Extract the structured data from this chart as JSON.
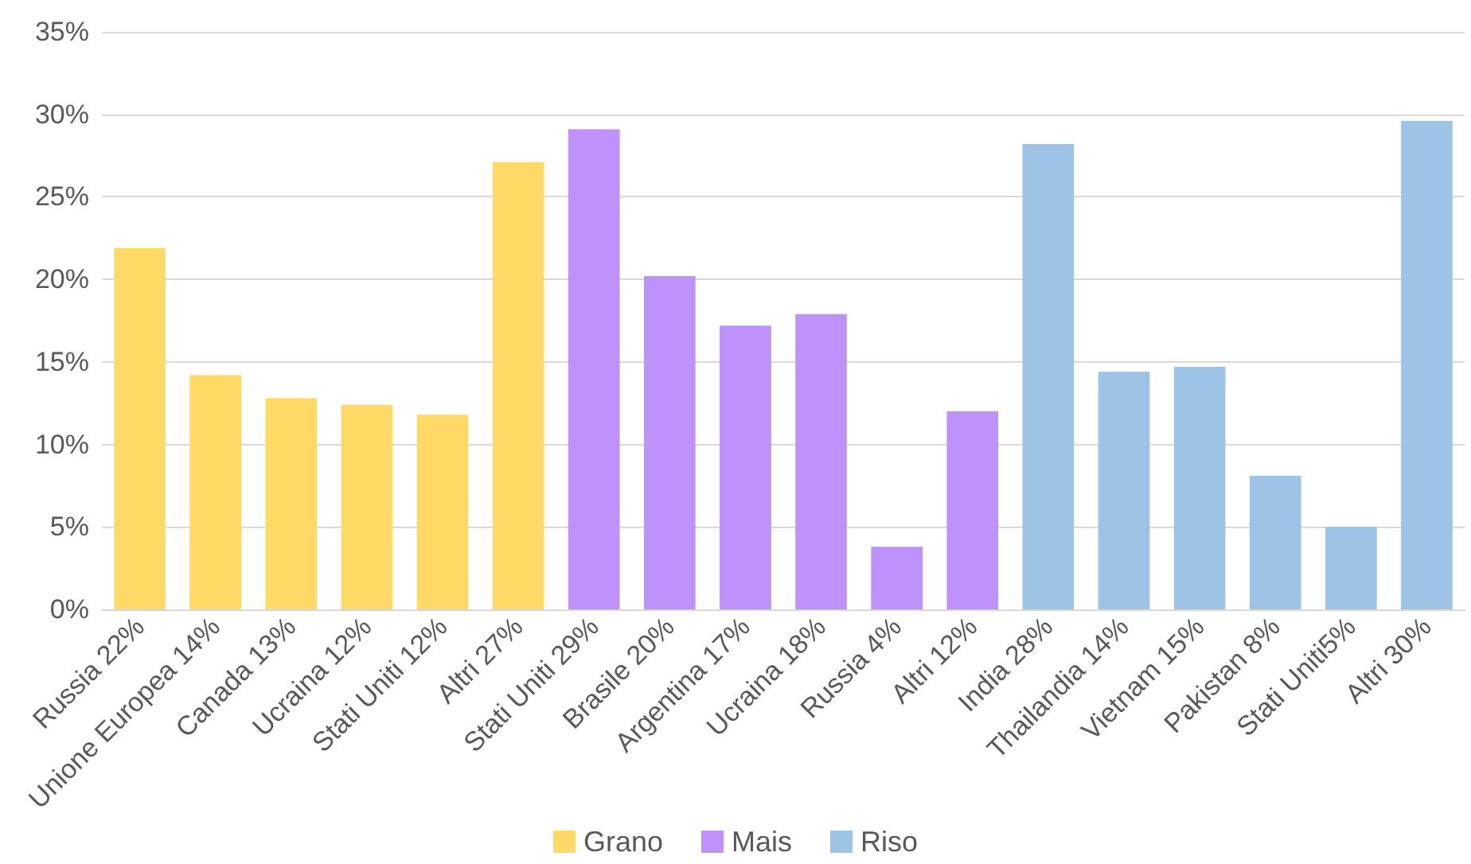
{
  "chart_data": {
    "type": "bar",
    "categories": [
      "Russia 22%",
      "Unione Europea 14%",
      "Canada 13%",
      "Ucraina 12%",
      "Stati Uniti 12%",
      "Altri 27%",
      "Stati Uniti 29%",
      "Brasile 20%",
      "Argentina 17%",
      "Ucraina 18%",
      "Russia 4%",
      "Altri 12%",
      "India 28%",
      "Thailandia 14%",
      "Vietnam 15%",
      "Pakistan 8%",
      "Stati Uniti5%",
      "Altri 30%"
    ],
    "series": [
      {
        "name": "Grano",
        "color": "#ffd966",
        "values": [
          21.9,
          14.2,
          12.8,
          12.4,
          11.8,
          27.1,
          null,
          null,
          null,
          null,
          null,
          null,
          null,
          null,
          null,
          null,
          null,
          null
        ]
      },
      {
        "name": "Mais",
        "color": "#bf91fb",
        "values": [
          null,
          null,
          null,
          null,
          null,
          null,
          29.1,
          20.2,
          17.2,
          17.9,
          3.8,
          12.0,
          null,
          null,
          null,
          null,
          null,
          null
        ]
      },
      {
        "name": "Riso",
        "color": "#9dc3e6",
        "values": [
          null,
          null,
          null,
          null,
          null,
          null,
          null,
          null,
          null,
          null,
          null,
          null,
          28.2,
          14.4,
          14.7,
          8.1,
          5.0,
          29.6
        ]
      }
    ],
    "ylim": [
      0,
      35
    ],
    "yticks": [
      {
        "value": 0,
        "label": "0%"
      },
      {
        "value": 5,
        "label": "5%"
      },
      {
        "value": 10,
        "label": "10%"
      },
      {
        "value": 15,
        "label": "15%"
      },
      {
        "value": 20,
        "label": "20%"
      },
      {
        "value": 25,
        "label": "25%"
      },
      {
        "value": 30,
        "label": "30%"
      },
      {
        "value": 35,
        "label": "35%"
      }
    ],
    "grid": "y",
    "legend": "bottom"
  }
}
